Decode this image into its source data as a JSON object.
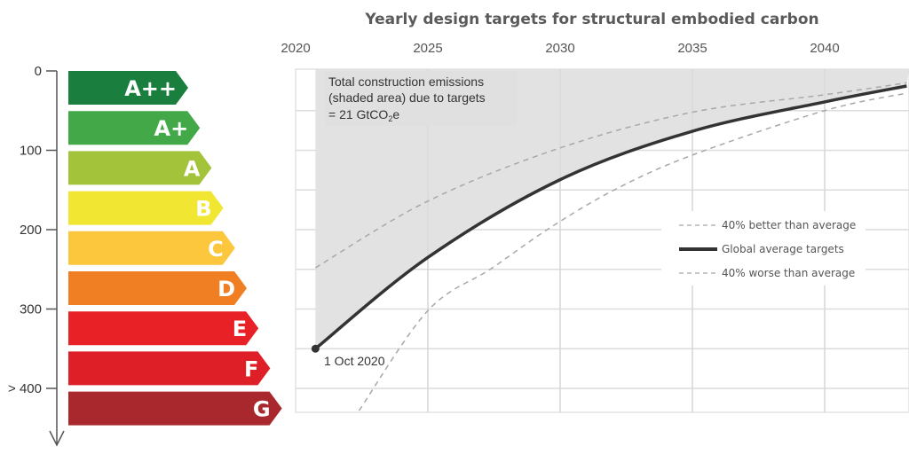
{
  "chart_data": {
    "type": "line",
    "title": "Yearly design targets for structural embodied carbon",
    "xlabel": "",
    "ylabel": "",
    "xlim": [
      2020,
      2043.1
    ],
    "ylim": [
      0,
      430
    ],
    "y_inverted": true,
    "grid": true,
    "x_ticks": [
      "2020",
      "2025",
      "2030",
      "2035",
      "2040"
    ],
    "y_ticks": [
      "0",
      "100",
      "200",
      "300",
      "> 400"
    ],
    "legend_position": "center-right",
    "rating_bands": [
      {
        "label": "A++",
        "color": "#1a7f3e"
      },
      {
        "label": "A+",
        "color": "#43a948"
      },
      {
        "label": "A",
        "color": "#a3c43a"
      },
      {
        "label": "B",
        "color": "#f1e733"
      },
      {
        "label": "C",
        "color": "#fcc63d"
      },
      {
        "label": "D",
        "color": "#ef7f22"
      },
      {
        "label": "E",
        "color": "#e82127"
      },
      {
        "label": "F",
        "color": "#df1f27"
      },
      {
        "label": "G",
        "color": "#a8282e"
      }
    ],
    "series": [
      {
        "name": "40% better than average",
        "style": "dashed",
        "color": "#a8a8a8",
        "x": [
          2020.75,
          2025,
          2030,
          2035,
          2040,
          2043.1
        ],
        "y": [
          248,
          164,
          97,
          52,
          30,
          15
        ]
      },
      {
        "name": "Global average targets",
        "style": "solid",
        "color": "#333333",
        "x": [
          2020.75,
          2025,
          2030,
          2035,
          2040,
          2043.1
        ],
        "y": [
          350,
          235,
          137,
          76,
          39,
          19
        ]
      },
      {
        "name": "40% worse than average",
        "style": "dashed",
        "color": "#a8a8a8",
        "x": [
          2022.4,
          2025,
          2027.4,
          2029.6,
          2032.1,
          2035,
          2040,
          2043.1
        ],
        "y": [
          428,
          302,
          249,
          198,
          149,
          106,
          50,
          28
        ]
      }
    ],
    "shaded_area": {
      "color": "#e0e0e0",
      "from_x": 2020.75
    },
    "annotations": {
      "shaded_note_line1": "Total construction emissions",
      "shaded_note_line2": "(shaded area) due to targets",
      "shaded_note_line3_prefix": "= 21 GtCO",
      "shaded_note_line3_sub": "2",
      "shaded_note_line3_suffix": "e",
      "start_point_label": "1 Oct 2020"
    }
  }
}
